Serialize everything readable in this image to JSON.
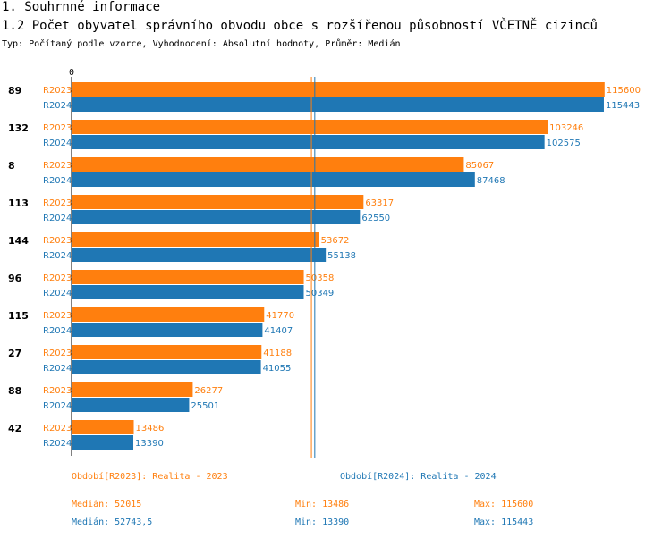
{
  "header": {
    "section": "1. Souhrnné informace",
    "title": "1.2 Počet obyvatel správního obvodu obce s rozšířenou působností VČETNĚ cizinců",
    "subtitle": "Typ: Počítaný podle vzorce, Vyhodnocení: Absolutní hodnoty, Průměr: Medián"
  },
  "colors": {
    "r2023": "#ff7f0e",
    "r2024": "#1f77b4"
  },
  "chart_data": {
    "type": "bar",
    "orientation": "horizontal",
    "x_axis_zero_label": "0",
    "xlim": [
      0,
      117000
    ],
    "categories": [
      "89",
      "132",
      "8",
      "113",
      "144",
      "96",
      "115",
      "27",
      "88",
      "42"
    ],
    "series": [
      {
        "name": "R2023",
        "values": [
          115600,
          103246,
          85067,
          63317,
          53672,
          50358,
          41770,
          41188,
          26277,
          13486
        ]
      },
      {
        "name": "R2024",
        "values": [
          115443,
          102575,
          87468,
          62550,
          55138,
          50349,
          41407,
          41055,
          25501,
          13390
        ]
      }
    ],
    "median_lines": [
      {
        "series": "R2023",
        "value": 52015
      },
      {
        "series": "R2024",
        "value": 52743.5
      }
    ]
  },
  "legend": {
    "r2023": {
      "period": "Období[R2023]: Realita - 2023",
      "median": "Medián: 52015",
      "min": "Min: 13486",
      "max": "Max: 115600"
    },
    "r2024": {
      "period": "Období[R2024]: Realita - 2024",
      "median": "Medián: 52743,5",
      "min": "Min: 13390",
      "max": "Max: 115443"
    }
  }
}
